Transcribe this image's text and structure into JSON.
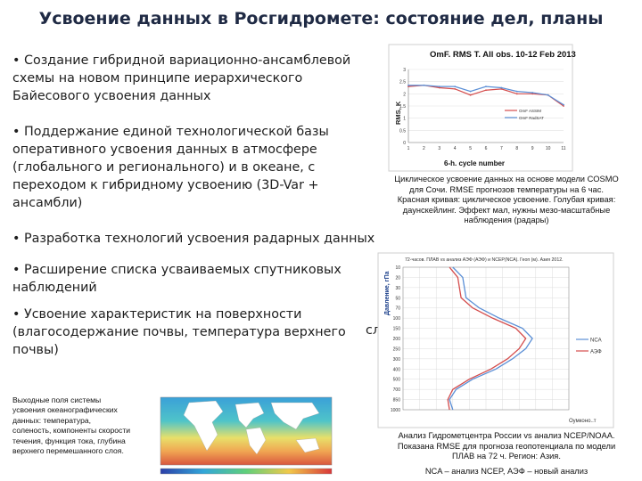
{
  "title": "Усвоение данных в Росгидромете:  состояние дел, планы",
  "bullets": [
    {
      "lines": [
        "• Создание гибридной вариационно-ансамблевой",
        "схемы на новом принципе иерархического",
        "Байесового усвоения данных"
      ]
    },
    {
      "lines": [
        "• Поддержание единой технологической базы",
        "оперативного усвоения данных в атмосфере",
        "(глобального и регионального) и в океане, с",
        "переходом к гибридному усвоению (3D-Var +",
        "ансамбли)"
      ]
    },
    {
      "lines": [
        "• Разработка технологий усвоения радарных данных"
      ]
    },
    {
      "lines": [
        "• Расширение списка усваиваемых спутниковых",
        "наблюдений"
      ]
    },
    {
      "lines": [
        "• Усвоение характеристик на поверхности",
        "(влагосодержание почвы, температура верхнего",
        "почвы)"
      ]
    }
  ],
  "cut_text": "сл",
  "chart1": {
    "title": "OmF. RMS T. All obs. 10-12 Feb 2013",
    "xlabel": "6-h. cycle number",
    "ylabel": "RMS, K",
    "yticks": [
      "3",
      "2.5",
      "2",
      "1.5",
      "1",
      "0.5",
      "0"
    ],
    "xticks": [
      "1",
      "2",
      "3",
      "4",
      "5",
      "6",
      "7",
      "8",
      "9",
      "10",
      "11"
    ],
    "legend": [
      "OmF ASSIM",
      "OmF RadSAT"
    ],
    "caption_lines": [
      "Циклическое усвоение данных на основе модели COSMO",
      "для Сочи. RMSE прогнозов температуры на 6 час.",
      "Красная кривая: циклическое усвоение. Голубая кривая:",
      "даунскейлинг. Эффект мал, нужны мезо-масштабные",
      "наблюдения (радары)"
    ]
  },
  "chart2": {
    "title": "72-часов. ПЛАВ vs анализ АЭФ (АЭФ) и NCEP(NCA). Геоп (м). Азия 2012.",
    "ylabel": "Давление, гПа",
    "yticks": [
      "10",
      "20",
      "30",
      "50",
      "70",
      "100",
      "150",
      "200",
      "250",
      "300",
      "400",
      "500",
      "700",
      "850",
      "1000"
    ],
    "legend": [
      "NCA",
      "АЭФ"
    ],
    "corner": "Оумконо..т",
    "caption_lines": [
      "Анализ Гидрометцентра России vs анализ NCEP/NOAA.",
      "Показана RMSE для прогноза геопотенциала по модели",
      "ПЛАВ на 72 ч. Регион: Азия."
    ],
    "footer": "NCA – анализ NCEP, АЭФ – новый анализ"
  },
  "map": {
    "caption_lines": [
      "Выходные поля системы",
      "усвоения океанографических",
      "данных:  температура,",
      "соленость, компоненты скорости",
      "течения, функция тока, глубина",
      "верхнего перемешанного слоя."
    ]
  },
  "colors": {
    "title": "#1f2a44",
    "blue_curve": "#5b8fd6",
    "red_curve": "#d44c4c",
    "ocean": "#4aa3d9",
    "land": "#ffffff"
  },
  "chart_data": [
    {
      "type": "line",
      "title": "OmF. RMS T. All obs. 10-12 Feb 2013",
      "xlabel": "6-h. cycle number",
      "ylabel": "RMS, K",
      "x": [
        1,
        2,
        3,
        4,
        5,
        6,
        7,
        8,
        9,
        10,
        11
      ],
      "ylim": [
        0,
        3
      ],
      "series": [
        {
          "name": "OmF ASSIM",
          "values": [
            2.3,
            2.35,
            2.25,
            2.2,
            1.95,
            2.15,
            2.2,
            2.0,
            2.0,
            1.95,
            1.5
          ]
        },
        {
          "name": "OmF RadSAT",
          "values": [
            2.35,
            2.35,
            2.3,
            2.3,
            2.1,
            2.3,
            2.25,
            2.1,
            2.05,
            1.95,
            1.55
          ]
        }
      ]
    },
    {
      "type": "line",
      "title": "72-часов. ПЛАВ vs анализ АЭФ (АЭФ) и NCEP(NCA). Геоп (м). Азия 2012.",
      "ylabel": "Давление, гПа",
      "levels": [
        10,
        20,
        30,
        50,
        70,
        100,
        150,
        200,
        250,
        300,
        400,
        500,
        700,
        850,
        1000
      ],
      "series": [
        {
          "name": "NCA",
          "values": [
            30,
            36,
            37,
            38,
            46,
            58,
            72,
            78,
            74,
            66,
            56,
            42,
            32,
            28,
            30
          ]
        },
        {
          "name": "АЭФ",
          "values": [
            28,
            33,
            34,
            35,
            42,
            54,
            68,
            74,
            70,
            63,
            53,
            40,
            30,
            27,
            28
          ]
        }
      ]
    }
  ]
}
